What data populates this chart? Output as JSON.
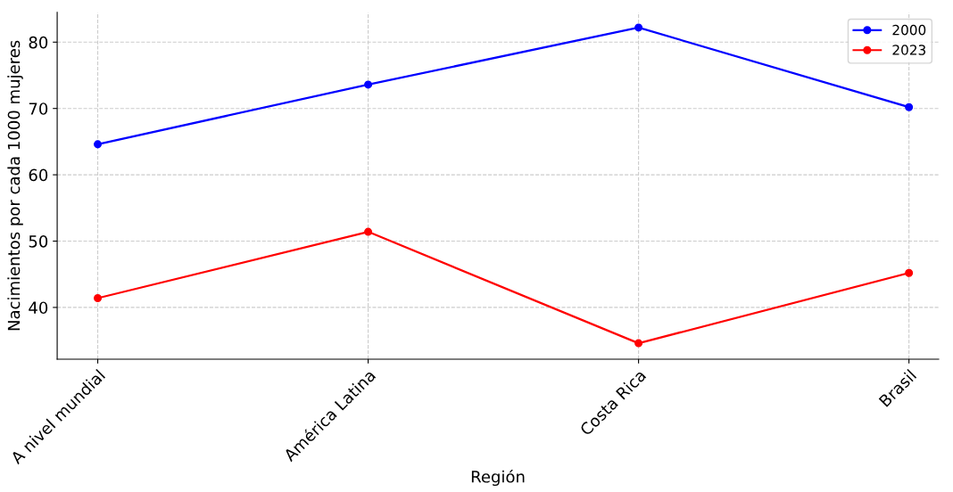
{
  "chart_data": {
    "type": "line",
    "xlabel": "Región",
    "ylabel": "Nacimientos por cada 1000 mujeres",
    "categories": [
      "A nivel mundial",
      "América Latina",
      "Costa Rica",
      "Brasil"
    ],
    "series": [
      {
        "name": "2000",
        "color": "#0000ff",
        "values": [
          64.6,
          73.6,
          82.2,
          70.2
        ]
      },
      {
        "name": "2023",
        "color": "#ff0000",
        "values": [
          41.4,
          51.4,
          34.6,
          45.2
        ]
      }
    ],
    "ylim": [
      32.2,
      84.5
    ],
    "yticks": [
      40,
      50,
      60,
      70,
      80
    ],
    "grid": true,
    "legend": "top right",
    "marker": "circle",
    "line_style": "solid"
  }
}
